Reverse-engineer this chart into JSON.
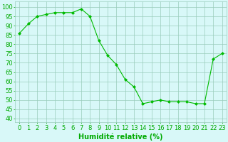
{
  "x": [
    0,
    1,
    2,
    3,
    4,
    5,
    6,
    7,
    8,
    9,
    10,
    11,
    12,
    13,
    14,
    15,
    16,
    17,
    18,
    19,
    20,
    21,
    22,
    23
  ],
  "y": [
    86,
    91,
    95,
    96,
    97,
    97,
    97,
    99,
    95,
    82,
    74,
    69,
    61,
    57,
    48,
    49,
    50,
    49,
    49,
    49,
    48,
    48,
    72,
    75
  ],
  "line_color": "#00bb00",
  "marker": "D",
  "marker_size": 2,
  "bg_color": "#d8f8f8",
  "grid_color": "#99ccbb",
  "xlabel": "Humidité relative (%)",
  "xlabel_color": "#00aa00",
  "xlabel_fontsize": 7,
  "yticks": [
    40,
    45,
    50,
    55,
    60,
    65,
    70,
    75,
    80,
    85,
    90,
    95,
    100
  ],
  "ylim": [
    38,
    103
  ],
  "xlim": [
    -0.5,
    23.5
  ],
  "tick_color": "#00aa00",
  "tick_fontsize": 6
}
